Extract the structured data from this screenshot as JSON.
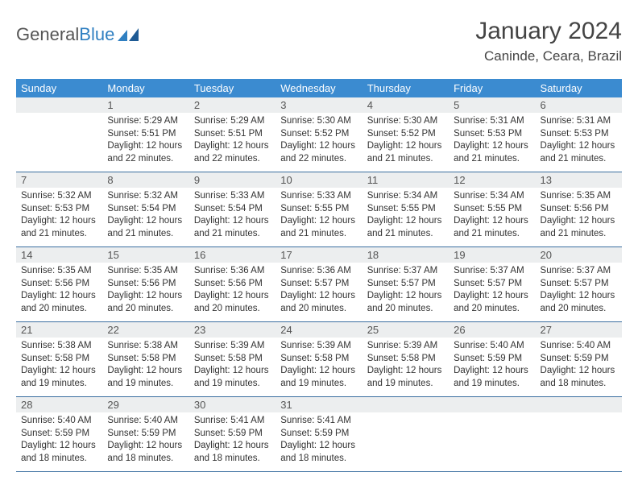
{
  "logo": {
    "text_general": "General",
    "text_blue": "Blue"
  },
  "title": "January 2024",
  "location": "Caninde, Ceara, Brazil",
  "colors": {
    "header_bg": "#3b8bd0",
    "header_text": "#ffffff",
    "daynum_bg": "#eceeef",
    "row_border": "#3b6fa0",
    "logo_gray": "#555555",
    "logo_blue": "#2f7fc1"
  },
  "day_headers": [
    "Sunday",
    "Monday",
    "Tuesday",
    "Wednesday",
    "Thursday",
    "Friday",
    "Saturday"
  ],
  "weeks": [
    [
      {
        "n": "",
        "sr": "",
        "ss": "",
        "dl": ""
      },
      {
        "n": "1",
        "sr": "Sunrise: 5:29 AM",
        "ss": "Sunset: 5:51 PM",
        "dl": "Daylight: 12 hours and 22 minutes."
      },
      {
        "n": "2",
        "sr": "Sunrise: 5:29 AM",
        "ss": "Sunset: 5:51 PM",
        "dl": "Daylight: 12 hours and 22 minutes."
      },
      {
        "n": "3",
        "sr": "Sunrise: 5:30 AM",
        "ss": "Sunset: 5:52 PM",
        "dl": "Daylight: 12 hours and 22 minutes."
      },
      {
        "n": "4",
        "sr": "Sunrise: 5:30 AM",
        "ss": "Sunset: 5:52 PM",
        "dl": "Daylight: 12 hours and 21 minutes."
      },
      {
        "n": "5",
        "sr": "Sunrise: 5:31 AM",
        "ss": "Sunset: 5:53 PM",
        "dl": "Daylight: 12 hours and 21 minutes."
      },
      {
        "n": "6",
        "sr": "Sunrise: 5:31 AM",
        "ss": "Sunset: 5:53 PM",
        "dl": "Daylight: 12 hours and 21 minutes."
      }
    ],
    [
      {
        "n": "7",
        "sr": "Sunrise: 5:32 AM",
        "ss": "Sunset: 5:53 PM",
        "dl": "Daylight: 12 hours and 21 minutes."
      },
      {
        "n": "8",
        "sr": "Sunrise: 5:32 AM",
        "ss": "Sunset: 5:54 PM",
        "dl": "Daylight: 12 hours and 21 minutes."
      },
      {
        "n": "9",
        "sr": "Sunrise: 5:33 AM",
        "ss": "Sunset: 5:54 PM",
        "dl": "Daylight: 12 hours and 21 minutes."
      },
      {
        "n": "10",
        "sr": "Sunrise: 5:33 AM",
        "ss": "Sunset: 5:55 PM",
        "dl": "Daylight: 12 hours and 21 minutes."
      },
      {
        "n": "11",
        "sr": "Sunrise: 5:34 AM",
        "ss": "Sunset: 5:55 PM",
        "dl": "Daylight: 12 hours and 21 minutes."
      },
      {
        "n": "12",
        "sr": "Sunrise: 5:34 AM",
        "ss": "Sunset: 5:55 PM",
        "dl": "Daylight: 12 hours and 21 minutes."
      },
      {
        "n": "13",
        "sr": "Sunrise: 5:35 AM",
        "ss": "Sunset: 5:56 PM",
        "dl": "Daylight: 12 hours and 21 minutes."
      }
    ],
    [
      {
        "n": "14",
        "sr": "Sunrise: 5:35 AM",
        "ss": "Sunset: 5:56 PM",
        "dl": "Daylight: 12 hours and 20 minutes."
      },
      {
        "n": "15",
        "sr": "Sunrise: 5:35 AM",
        "ss": "Sunset: 5:56 PM",
        "dl": "Daylight: 12 hours and 20 minutes."
      },
      {
        "n": "16",
        "sr": "Sunrise: 5:36 AM",
        "ss": "Sunset: 5:56 PM",
        "dl": "Daylight: 12 hours and 20 minutes."
      },
      {
        "n": "17",
        "sr": "Sunrise: 5:36 AM",
        "ss": "Sunset: 5:57 PM",
        "dl": "Daylight: 12 hours and 20 minutes."
      },
      {
        "n": "18",
        "sr": "Sunrise: 5:37 AM",
        "ss": "Sunset: 5:57 PM",
        "dl": "Daylight: 12 hours and 20 minutes."
      },
      {
        "n": "19",
        "sr": "Sunrise: 5:37 AM",
        "ss": "Sunset: 5:57 PM",
        "dl": "Daylight: 12 hours and 20 minutes."
      },
      {
        "n": "20",
        "sr": "Sunrise: 5:37 AM",
        "ss": "Sunset: 5:57 PM",
        "dl": "Daylight: 12 hours and 20 minutes."
      }
    ],
    [
      {
        "n": "21",
        "sr": "Sunrise: 5:38 AM",
        "ss": "Sunset: 5:58 PM",
        "dl": "Daylight: 12 hours and 19 minutes."
      },
      {
        "n": "22",
        "sr": "Sunrise: 5:38 AM",
        "ss": "Sunset: 5:58 PM",
        "dl": "Daylight: 12 hours and 19 minutes."
      },
      {
        "n": "23",
        "sr": "Sunrise: 5:39 AM",
        "ss": "Sunset: 5:58 PM",
        "dl": "Daylight: 12 hours and 19 minutes."
      },
      {
        "n": "24",
        "sr": "Sunrise: 5:39 AM",
        "ss": "Sunset: 5:58 PM",
        "dl": "Daylight: 12 hours and 19 minutes."
      },
      {
        "n": "25",
        "sr": "Sunrise: 5:39 AM",
        "ss": "Sunset: 5:58 PM",
        "dl": "Daylight: 12 hours and 19 minutes."
      },
      {
        "n": "26",
        "sr": "Sunrise: 5:40 AM",
        "ss": "Sunset: 5:59 PM",
        "dl": "Daylight: 12 hours and 19 minutes."
      },
      {
        "n": "27",
        "sr": "Sunrise: 5:40 AM",
        "ss": "Sunset: 5:59 PM",
        "dl": "Daylight: 12 hours and 18 minutes."
      }
    ],
    [
      {
        "n": "28",
        "sr": "Sunrise: 5:40 AM",
        "ss": "Sunset: 5:59 PM",
        "dl": "Daylight: 12 hours and 18 minutes."
      },
      {
        "n": "29",
        "sr": "Sunrise: 5:40 AM",
        "ss": "Sunset: 5:59 PM",
        "dl": "Daylight: 12 hours and 18 minutes."
      },
      {
        "n": "30",
        "sr": "Sunrise: 5:41 AM",
        "ss": "Sunset: 5:59 PM",
        "dl": "Daylight: 12 hours and 18 minutes."
      },
      {
        "n": "31",
        "sr": "Sunrise: 5:41 AM",
        "ss": "Sunset: 5:59 PM",
        "dl": "Daylight: 12 hours and 18 minutes."
      },
      {
        "n": "",
        "sr": "",
        "ss": "",
        "dl": ""
      },
      {
        "n": "",
        "sr": "",
        "ss": "",
        "dl": ""
      },
      {
        "n": "",
        "sr": "",
        "ss": "",
        "dl": ""
      }
    ]
  ]
}
